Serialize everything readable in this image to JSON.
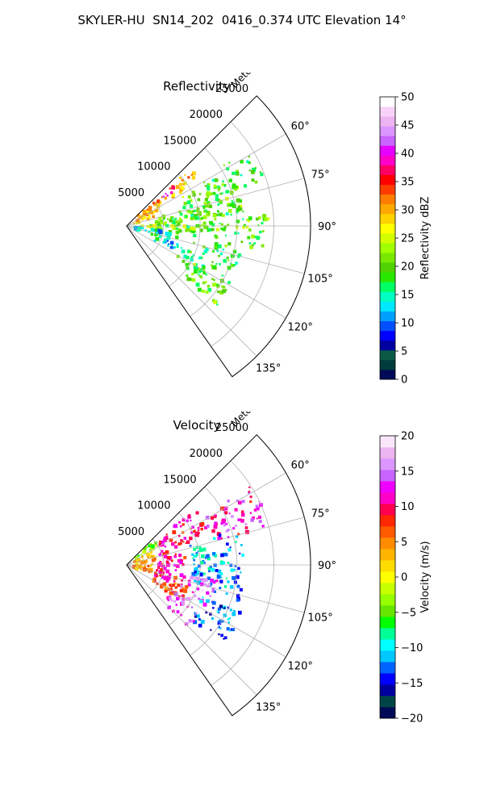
{
  "figure": {
    "suptitle": "SKYLER-HU  SN14_202  0416_0.374 UTC Elevation 14°"
  },
  "colors": {
    "background": "#ffffff",
    "grid": "#b0b0b0",
    "axis": "#000000",
    "reflectivity_cmap": [
      "#000a56",
      "#003c3c",
      "#0a5a46",
      "#0000a0",
      "#0000ff",
      "#0050ff",
      "#00a0ff",
      "#00e8ff",
      "#00ffc0",
      "#00ff64",
      "#28e800",
      "#50d200",
      "#78e800",
      "#a0ff00",
      "#d2ff00",
      "#ffff00",
      "#ffd200",
      "#ffa800",
      "#ff7e00",
      "#ff3c00",
      "#ff0000",
      "#ff0064",
      "#ff00c8",
      "#e600ff",
      "#c864ff",
      "#dc96ff",
      "#ecb4f0",
      "#f8d2f8",
      "#ffffff"
    ],
    "velocity_cmap": [
      "#000a56",
      "#004646",
      "#0000a0",
      "#0000ff",
      "#0064ff",
      "#00c8ff",
      "#00ffff",
      "#00ff96",
      "#00ff00",
      "#64e600",
      "#96ff00",
      "#c8ff00",
      "#ffff00",
      "#ffdc00",
      "#ffb400",
      "#ff8c00",
      "#ff5a00",
      "#ff2800",
      "#ff0050",
      "#ff00c8",
      "#ee00ff",
      "#c864ff",
      "#dc96ff",
      "#ecb4f0",
      "#fae6fa"
    ]
  },
  "chart_data": [
    {
      "type": "heatmap",
      "projection": "polar-sector",
      "title": "Reflectivity",
      "radial_label": "Meters",
      "range_rings": [
        5000,
        10000,
        15000,
        20000,
        25000
      ],
      "range_max": 25000,
      "azimuth_ticks": [
        "60°",
        "75°",
        "90°",
        "105°",
        "120°",
        "135°"
      ],
      "azimuth_range_deg": [
        45,
        145
      ],
      "colorbar": {
        "label": "Reflectivity dBZ",
        "min": 0,
        "max": 50,
        "ticks": [
          "0",
          "5",
          "10",
          "15",
          "20",
          "25",
          "30",
          "35",
          "40",
          "45",
          "50"
        ]
      },
      "echo_regions": [
        {
          "az": [
            48,
            58
          ],
          "r": [
            2000,
            12000
          ],
          "value": 30
        },
        {
          "az": [
            50,
            56
          ],
          "r": [
            6000,
            8500
          ],
          "value": 40
        },
        {
          "az": [
            58,
            75
          ],
          "r": [
            1000,
            5000
          ],
          "value": 28
        },
        {
          "az": [
            58,
            72
          ],
          "r": [
            12000,
            20000
          ],
          "value": 18
        },
        {
          "az": [
            62,
            85
          ],
          "r": [
            8000,
            16000
          ],
          "value": 20
        },
        {
          "az": [
            75,
            105
          ],
          "r": [
            4000,
            16000
          ],
          "value": 19
        },
        {
          "az": [
            85,
            100
          ],
          "r": [
            16000,
            20000
          ],
          "value": 20
        },
        {
          "az": [
            90,
            93
          ],
          "r": [
            2000,
            17000
          ],
          "value": 25
        },
        {
          "az": [
            95,
            110
          ],
          "r": [
            1000,
            6000
          ],
          "value": 14
        },
        {
          "az": [
            105,
            125
          ],
          "r": [
            8000,
            16000
          ],
          "value": 18
        },
        {
          "az": [
            118,
            132
          ],
          "r": [
            10000,
            17000
          ],
          "value": 20
        },
        {
          "az": [
            108,
            118
          ],
          "r": [
            4000,
            8000
          ],
          "value": 13
        }
      ]
    },
    {
      "type": "heatmap",
      "projection": "polar-sector",
      "title": "Velocity",
      "radial_label": "Meters",
      "range_rings": [
        5000,
        10000,
        15000,
        20000,
        25000
      ],
      "range_max": 25000,
      "azimuth_ticks": [
        "60°",
        "75°",
        "90°",
        "105°",
        "120°",
        "135°"
      ],
      "azimuth_range_deg": [
        45,
        145
      ],
      "colorbar": {
        "label": "Velocity (m/s)",
        "min": -20,
        "max": 20,
        "ticks": [
          "−20",
          "−15",
          "−10",
          "−5",
          "0",
          "5",
          "10",
          "15",
          "20"
        ]
      },
      "echo_regions": [
        {
          "az": [
            48,
            60
          ],
          "r": [
            1000,
            5000
          ],
          "value": -4
        },
        {
          "az": [
            60,
            110
          ],
          "r": [
            1000,
            4000
          ],
          "value": 4
        },
        {
          "az": [
            50,
            70
          ],
          "r": [
            5000,
            12000
          ],
          "value": 10
        },
        {
          "az": [
            55,
            75
          ],
          "r": [
            12000,
            20000
          ],
          "value": 12
        },
        {
          "az": [
            70,
            112
          ],
          "r": [
            4000,
            8000
          ],
          "value": 10
        },
        {
          "az": [
            72,
            108
          ],
          "r": [
            9000,
            16000
          ],
          "value": -11
        },
        {
          "az": [
            100,
            118
          ],
          "r": [
            8000,
            13000
          ],
          "value": 15
        },
        {
          "az": [
            110,
            125
          ],
          "r": [
            4000,
            9000
          ],
          "value": 6
        },
        {
          "az": [
            112,
            130
          ],
          "r": [
            10000,
            17000
          ],
          "value": -13
        },
        {
          "az": [
            118,
            135
          ],
          "r": [
            7000,
            12000
          ],
          "value": 14
        }
      ]
    }
  ]
}
